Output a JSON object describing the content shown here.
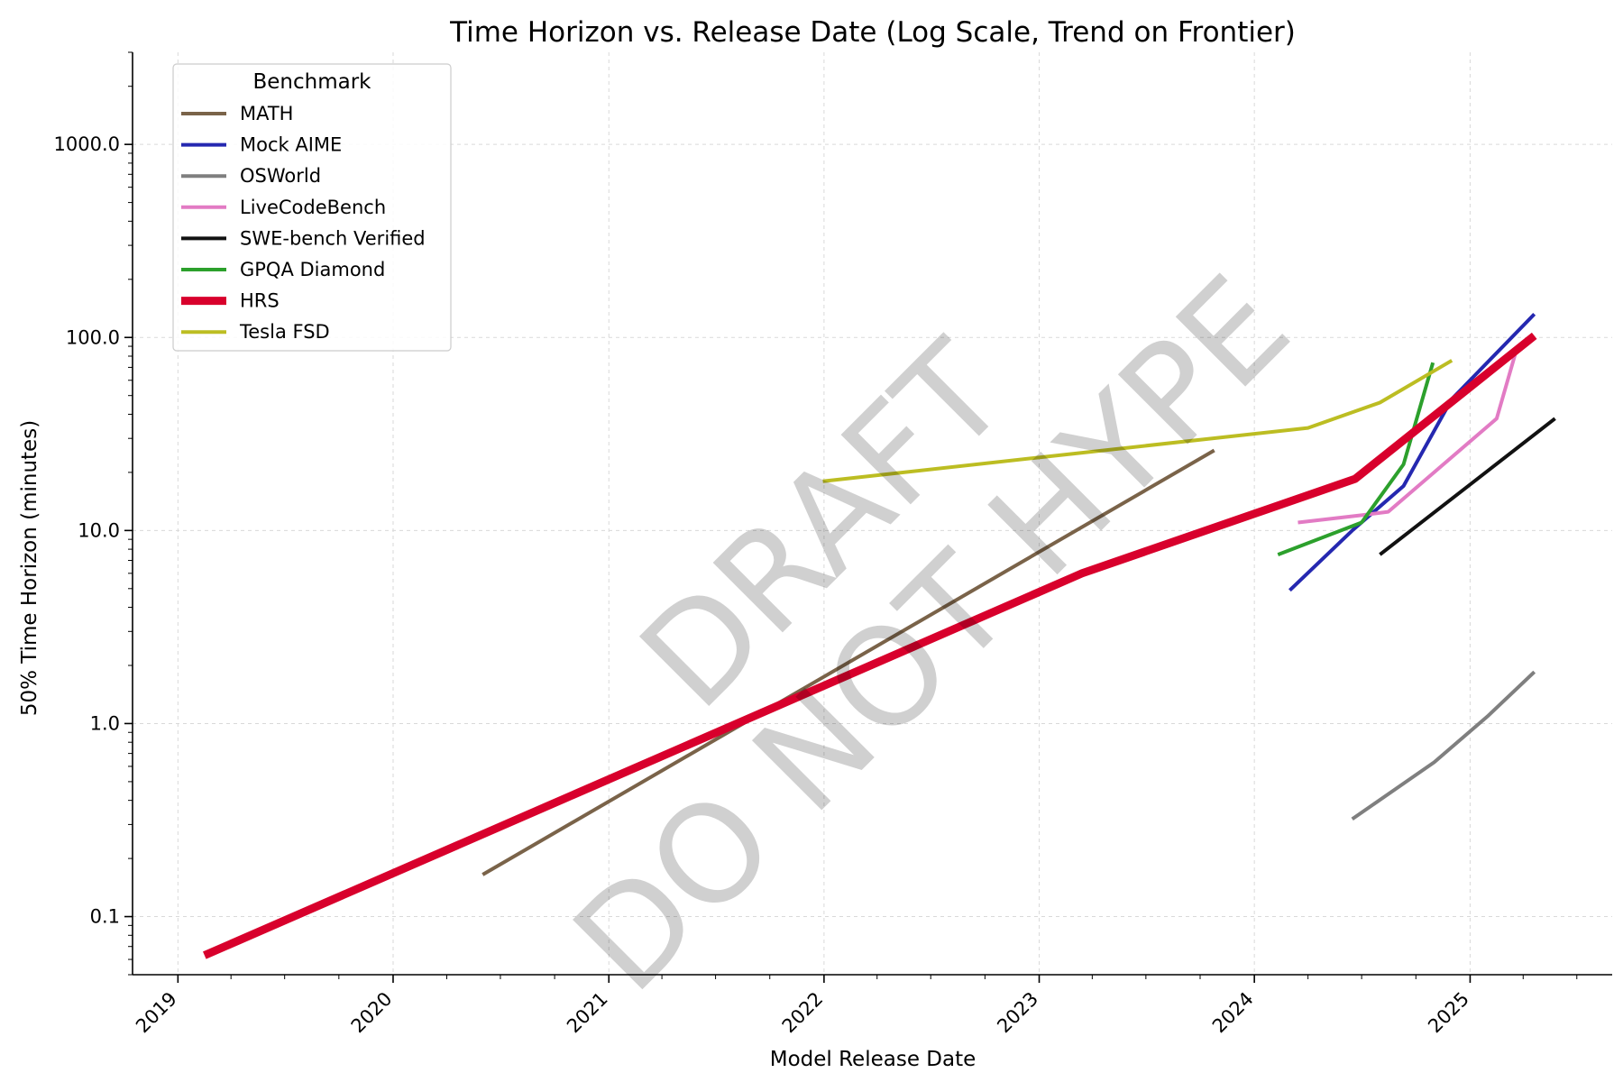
{
  "chart_data": {
    "type": "line",
    "title": "Time Horizon vs. Release Date (Log Scale, Trend on Frontier)",
    "xlabel": "Model Release Date",
    "ylabel": "50% Time Horizon (minutes)",
    "x_scale": "time",
    "y_scale": "log",
    "xlim": [
      "2018-10-16",
      "2025-08-30"
    ],
    "ylim": [
      0.05,
      3000
    ],
    "x_ticks": [
      "2019",
      "2020",
      "2021",
      "2022",
      "2023",
      "2024",
      "2025"
    ],
    "y_ticks": [
      "0.1",
      "1.0",
      "10.0",
      "100.0",
      "1000.0"
    ],
    "grid": true,
    "legend_title": "Benchmark",
    "legend_position": "top-left",
    "watermark": [
      "DRAFT",
      "DO NOT HYPE"
    ],
    "series": [
      {
        "name": "MATH",
        "color": "#7a6349",
        "width": 4,
        "points": [
          [
            "2020-06-01",
            0.165
          ],
          [
            "2023-10-25",
            26
          ]
        ]
      },
      {
        "name": "Mock AIME",
        "color": "#2528b0",
        "width": 4,
        "points": [
          [
            "2024-03-01",
            4.9
          ],
          [
            "2024-06-15",
            10
          ],
          [
            "2024-09-10",
            17
          ],
          [
            "2024-12-01",
            48
          ],
          [
            "2025-04-20",
            132
          ]
        ]
      },
      {
        "name": "OSWorld",
        "color": "#7f7f7f",
        "width": 4,
        "points": [
          [
            "2024-06-15",
            0.32
          ],
          [
            "2024-11-01",
            0.63
          ],
          [
            "2025-02-01",
            1.1
          ],
          [
            "2025-04-20",
            1.85
          ]
        ]
      },
      {
        "name": "LiveCodeBench",
        "color": "#e27bc4",
        "width": 4,
        "points": [
          [
            "2024-03-15",
            11
          ],
          [
            "2024-07-01",
            12
          ],
          [
            "2024-08-15",
            12.5
          ],
          [
            "2025-02-15",
            38
          ],
          [
            "2025-03-20",
            85
          ]
        ]
      },
      {
        "name": "SWE-bench Verified",
        "color": "#111111",
        "width": 4,
        "points": [
          [
            "2024-08-01",
            7.5
          ],
          [
            "2025-05-25",
            38
          ]
        ]
      },
      {
        "name": "GPQA Diamond",
        "color": "#2ca02c",
        "width": 4,
        "points": [
          [
            "2024-02-10",
            7.5
          ],
          [
            "2024-07-01",
            11
          ],
          [
            "2024-09-10",
            22
          ],
          [
            "2024-10-30",
            74
          ]
        ]
      },
      {
        "name": "HRS",
        "color": "#d8002c",
        "width": 9,
        "points": [
          [
            "2019-02-15",
            0.063
          ],
          [
            "2023-03-15",
            6
          ],
          [
            "2024-06-20",
            18.5
          ],
          [
            "2025-04-20",
            102
          ]
        ]
      },
      {
        "name": "Tesla FSD",
        "color": "#bcbd22",
        "width": 4,
        "points": [
          [
            "2021-12-30",
            18
          ],
          [
            "2024-04-01",
            34
          ],
          [
            "2024-08-01",
            46
          ],
          [
            "2024-12-01",
            76
          ]
        ]
      }
    ]
  }
}
